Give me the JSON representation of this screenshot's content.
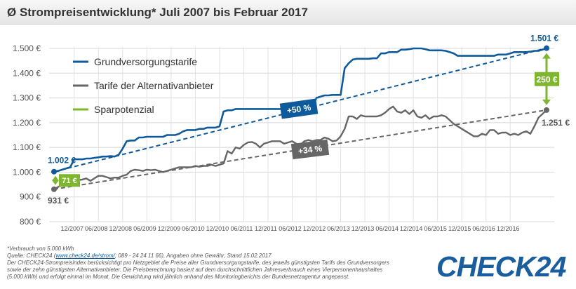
{
  "title": "Ø Strompreisentwicklung* Juli 2007 bis Februar 2017",
  "chart_data": {
    "type": "line",
    "title": "Ø Strompreisentwicklung* Juli 2007 bis Februar 2017",
    "ylim": [
      800,
      1500
    ],
    "ytick_labels": [
      "800 €",
      "900 €",
      "1.000 €",
      "1.100 €",
      "1.200 €",
      "1.300 €",
      "1.400 €",
      "1.500 €"
    ],
    "xtick_labels": [
      "12/2007",
      "06/2008",
      "12/2008",
      "06/2009",
      "12/2009",
      "06/2010",
      "12/2010",
      "06/2011",
      "12/2011",
      "06/2012",
      "12/2012",
      "06/2013",
      "12/2013",
      "06/2014",
      "12/2014",
      "06/2015",
      "12/2015",
      "06/2016",
      "12/2016"
    ],
    "grid": true,
    "legend_position": "top-left",
    "series": [
      {
        "name": "Grundversorgungstarife",
        "color": "#0f5a9a",
        "values": [
          1002,
          1005,
          1010,
          1015,
          1020,
          1052,
          1052,
          1052,
          1055,
          1055,
          1058,
          1060,
          1063,
          1063,
          1065,
          1063,
          1070,
          1095,
          1125,
          1128,
          1128,
          1140,
          1140,
          1143,
          1143,
          1143,
          1143,
          1143,
          1150,
          1150,
          1150,
          1155,
          1165,
          1170,
          1170,
          1170,
          1175,
          1175,
          1180,
          1180,
          1180,
          1185,
          1245,
          1250,
          1250,
          1255,
          1255,
          1255,
          1255,
          1255,
          1255,
          1255,
          1255,
          1255,
          1255,
          1255,
          1255,
          1255,
          1255,
          1255,
          1262,
          1262,
          1262,
          1262,
          1262,
          1300,
          1305,
          1310,
          1310,
          1312,
          1312,
          1312,
          1420,
          1440,
          1455,
          1458,
          1458,
          1458,
          1458,
          1460,
          1460,
          1480,
          1480,
          1485,
          1485,
          1485,
          1495,
          1495,
          1497,
          1500,
          1500,
          1500,
          1497,
          1492,
          1492,
          1492,
          1492,
          1490,
          1485,
          1480,
          1470,
          1470,
          1470,
          1470,
          1470,
          1470,
          1470,
          1470,
          1470,
          1470,
          1475,
          1475,
          1475,
          1480,
          1485,
          1485,
          1485,
          1485,
          1487,
          1490,
          1490,
          1495,
          1501
        ],
        "start_label": "1.002 €",
        "end_label": "1.501 €"
      },
      {
        "name": "Tarife der Alternativanbieter",
        "color": "#666666",
        "values": [
          931,
          940,
          948,
          955,
          960,
          970,
          968,
          970,
          975,
          965,
          975,
          985,
          985,
          980,
          975,
          978,
          978,
          985,
          990,
          1005,
          1010,
          1008,
          1005,
          1010,
          1008,
          1010,
          1005,
          1000,
          1005,
          1010,
          1015,
          1020,
          1020,
          1020,
          1020,
          1025,
          1022,
          1025,
          1025,
          1030,
          1025,
          1030,
          1035,
          1085,
          1075,
          1100,
          1095,
          1110,
          1120,
          1122,
          1115,
          1100,
          1115,
          1120,
          1125,
          1125,
          1125,
          1115,
          1120,
          1125,
          1115,
          1110,
          1125,
          1130,
          1125,
          1130,
          1130,
          1140,
          1135,
          1125,
          1128,
          1145,
          1175,
          1225,
          1225,
          1215,
          1230,
          1225,
          1225,
          1225,
          1225,
          1230,
          1240,
          1255,
          1265,
          1245,
          1240,
          1250,
          1235,
          1250,
          1225,
          1220,
          1230,
          1215,
          1225,
          1225,
          1230,
          1225,
          1210,
          1195,
          1185,
          1175,
          1165,
          1155,
          1145,
          1145,
          1155,
          1150,
          1170,
          1170,
          1155,
          1160,
          1160,
          1150,
          1155,
          1150,
          1160,
          1165,
          1155,
          1185,
          1220,
          1235,
          1251
        ],
        "start_label": "931 €",
        "end_label": "1.251 €"
      }
    ],
    "legend_sparpotenzial": "Sparpotenzial",
    "sparpotenzial_color": "#7fb630",
    "annotations": {
      "start_gap_label": "71 €",
      "end_gap_label": "250 €",
      "grund_growth_label": "+50 %",
      "alt_growth_label": "+34 %"
    }
  },
  "footnote": {
    "line1": "*Verbrauch von 5.000 kWh",
    "line2_prefix": "Quelle: CHECK24 (",
    "line2_link": "www.check24.de/strom/",
    "line2_suffix": "; 089 - 24 24 11 66), Angaben ohne Gewähr, Stand 15.02.2017",
    "line3": "Der CHECK24-Strompreisindex berücksichtigt pro Netzgebiet die Preise aller Grundversorgungstarife, des jeweils günstigsten Tarifs des Grundversorgers",
    "line4": "sowie der zehn günstigsten Alternativanbieter. Die Preisberechnung basiert auf dem durchschnittlichen Jahresverbrauch eines Vierpersonenhaushaltes",
    "line5": "(5.000 kWh) und erfolgt einmal im Monat. Die Gewichtung wird jährlich anhand des Monitoringberichts der Bundesnetzagentur angepasst."
  },
  "logo": {
    "text": "CHECK24",
    "color": "#1a5e9e"
  }
}
